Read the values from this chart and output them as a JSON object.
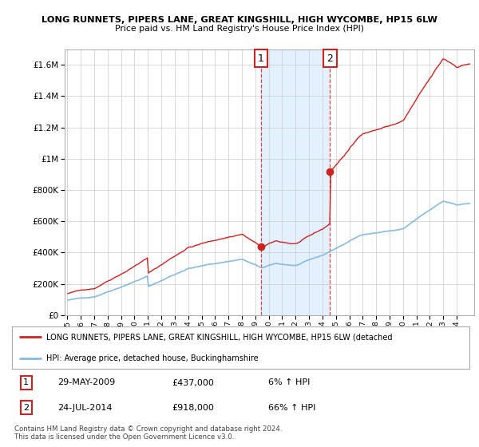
{
  "title1": "LONG RUNNETS, PIPERS LANE, GREAT KINGSHILL, HIGH WYCOMBE, HP15 6LW",
  "title2": "Price paid vs. HM Land Registry's House Price Index (HPI)",
  "background_color": "#ffffff",
  "plot_bg_color": "#ffffff",
  "grid_color": "#cccccc",
  "sale1_date": "29-MAY-2009",
  "sale1_price": 437000,
  "sale1_label": "6% ↑ HPI",
  "sale2_date": "24-JUL-2014",
  "sale2_price": 918000,
  "sale2_label": "66% ↑ HPI",
  "sale1_x": 2009.42,
  "sale2_x": 2014.56,
  "hpi_color": "#88bbdd",
  "price_color": "#cc2222",
  "shaded_region_color": "#ddeeff",
  "legend_line1": "LONG RUNNETS, PIPERS LANE, GREAT KINGSHILL, HIGH WYCOMBE, HP15 6LW (detached",
  "legend_line2": "HPI: Average price, detached house, Buckinghamshire",
  "footnote1": "Contains HM Land Registry data © Crown copyright and database right 2024.",
  "footnote2": "This data is licensed under the Open Government Licence v3.0.",
  "xmin": 1994.8,
  "xmax": 2025.3,
  "ymin": 0,
  "ymax": 1700000,
  "yticks": [
    0,
    200000,
    400000,
    600000,
    800000,
    1000000,
    1200000,
    1400000,
    1600000
  ]
}
